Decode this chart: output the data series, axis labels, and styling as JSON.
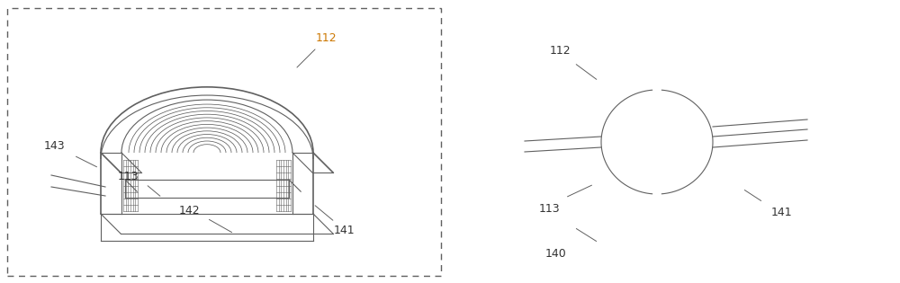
{
  "bg_color": "#ffffff",
  "line_color": "#606060",
  "label_color": "#333333",
  "orange_color": "#cc7700",
  "label_fontsize": 8.5,
  "fig_width": 10.0,
  "fig_height": 3.15,
  "dpi": 100
}
